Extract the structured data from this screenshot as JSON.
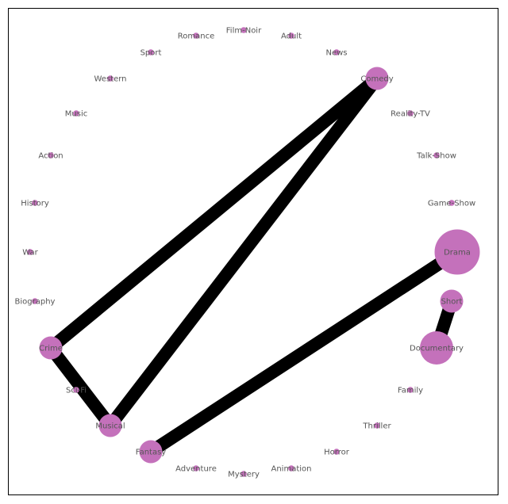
{
  "diagram": {
    "type": "circular-network",
    "node_color": "#c471bb",
    "edge_color": "#000000",
    "label_color": "#555555",
    "nodes": [
      {
        "id": "drama",
        "label": "Drama",
        "size": "xl"
      },
      {
        "id": "game-show",
        "label": "Game-Show",
        "size": "xs"
      },
      {
        "id": "talk-show",
        "label": "Talk-Show",
        "size": "xs"
      },
      {
        "id": "reality-tv",
        "label": "Reality-TV",
        "size": "xs"
      },
      {
        "id": "comedy",
        "label": "Comedy",
        "size": "m"
      },
      {
        "id": "news",
        "label": "News",
        "size": "xs"
      },
      {
        "id": "adult",
        "label": "Adult",
        "size": "xs"
      },
      {
        "id": "film-noir",
        "label": "Film-Noir",
        "size": "xs"
      },
      {
        "id": "romance",
        "label": "Romance",
        "size": "xs"
      },
      {
        "id": "sport",
        "label": "Sport",
        "size": "xs"
      },
      {
        "id": "western",
        "label": "Western",
        "size": "xs"
      },
      {
        "id": "music",
        "label": "Music",
        "size": "xs"
      },
      {
        "id": "action",
        "label": "Action",
        "size": "xs"
      },
      {
        "id": "history",
        "label": "History",
        "size": "xs"
      },
      {
        "id": "war",
        "label": "War",
        "size": "xs"
      },
      {
        "id": "biography",
        "label": "Biography",
        "size": "xs"
      },
      {
        "id": "crime",
        "label": "Crime",
        "size": "m"
      },
      {
        "id": "sci-fi",
        "label": "Sci-Fi",
        "size": "xs"
      },
      {
        "id": "musical",
        "label": "Musical",
        "size": "m"
      },
      {
        "id": "fantasy",
        "label": "Fantasy",
        "size": "m"
      },
      {
        "id": "adventure",
        "label": "Adventure",
        "size": "xs"
      },
      {
        "id": "mystery",
        "label": "Mystery",
        "size": "xs"
      },
      {
        "id": "animation",
        "label": "Animation",
        "size": "xs"
      },
      {
        "id": "horror",
        "label": "Horror",
        "size": "xs"
      },
      {
        "id": "thriller",
        "label": "Thriller",
        "size": "xs"
      },
      {
        "id": "family",
        "label": "Family",
        "size": "xs"
      },
      {
        "id": "documentary",
        "label": "Documentary",
        "size": "l"
      },
      {
        "id": "short",
        "label": "Short",
        "size": "m"
      }
    ],
    "edges": [
      {
        "source": "comedy",
        "target": "crime"
      },
      {
        "source": "comedy",
        "target": "musical"
      },
      {
        "source": "crime",
        "target": "musical"
      },
      {
        "source": "drama",
        "target": "fantasy"
      },
      {
        "source": "short",
        "target": "documentary"
      }
    ]
  }
}
